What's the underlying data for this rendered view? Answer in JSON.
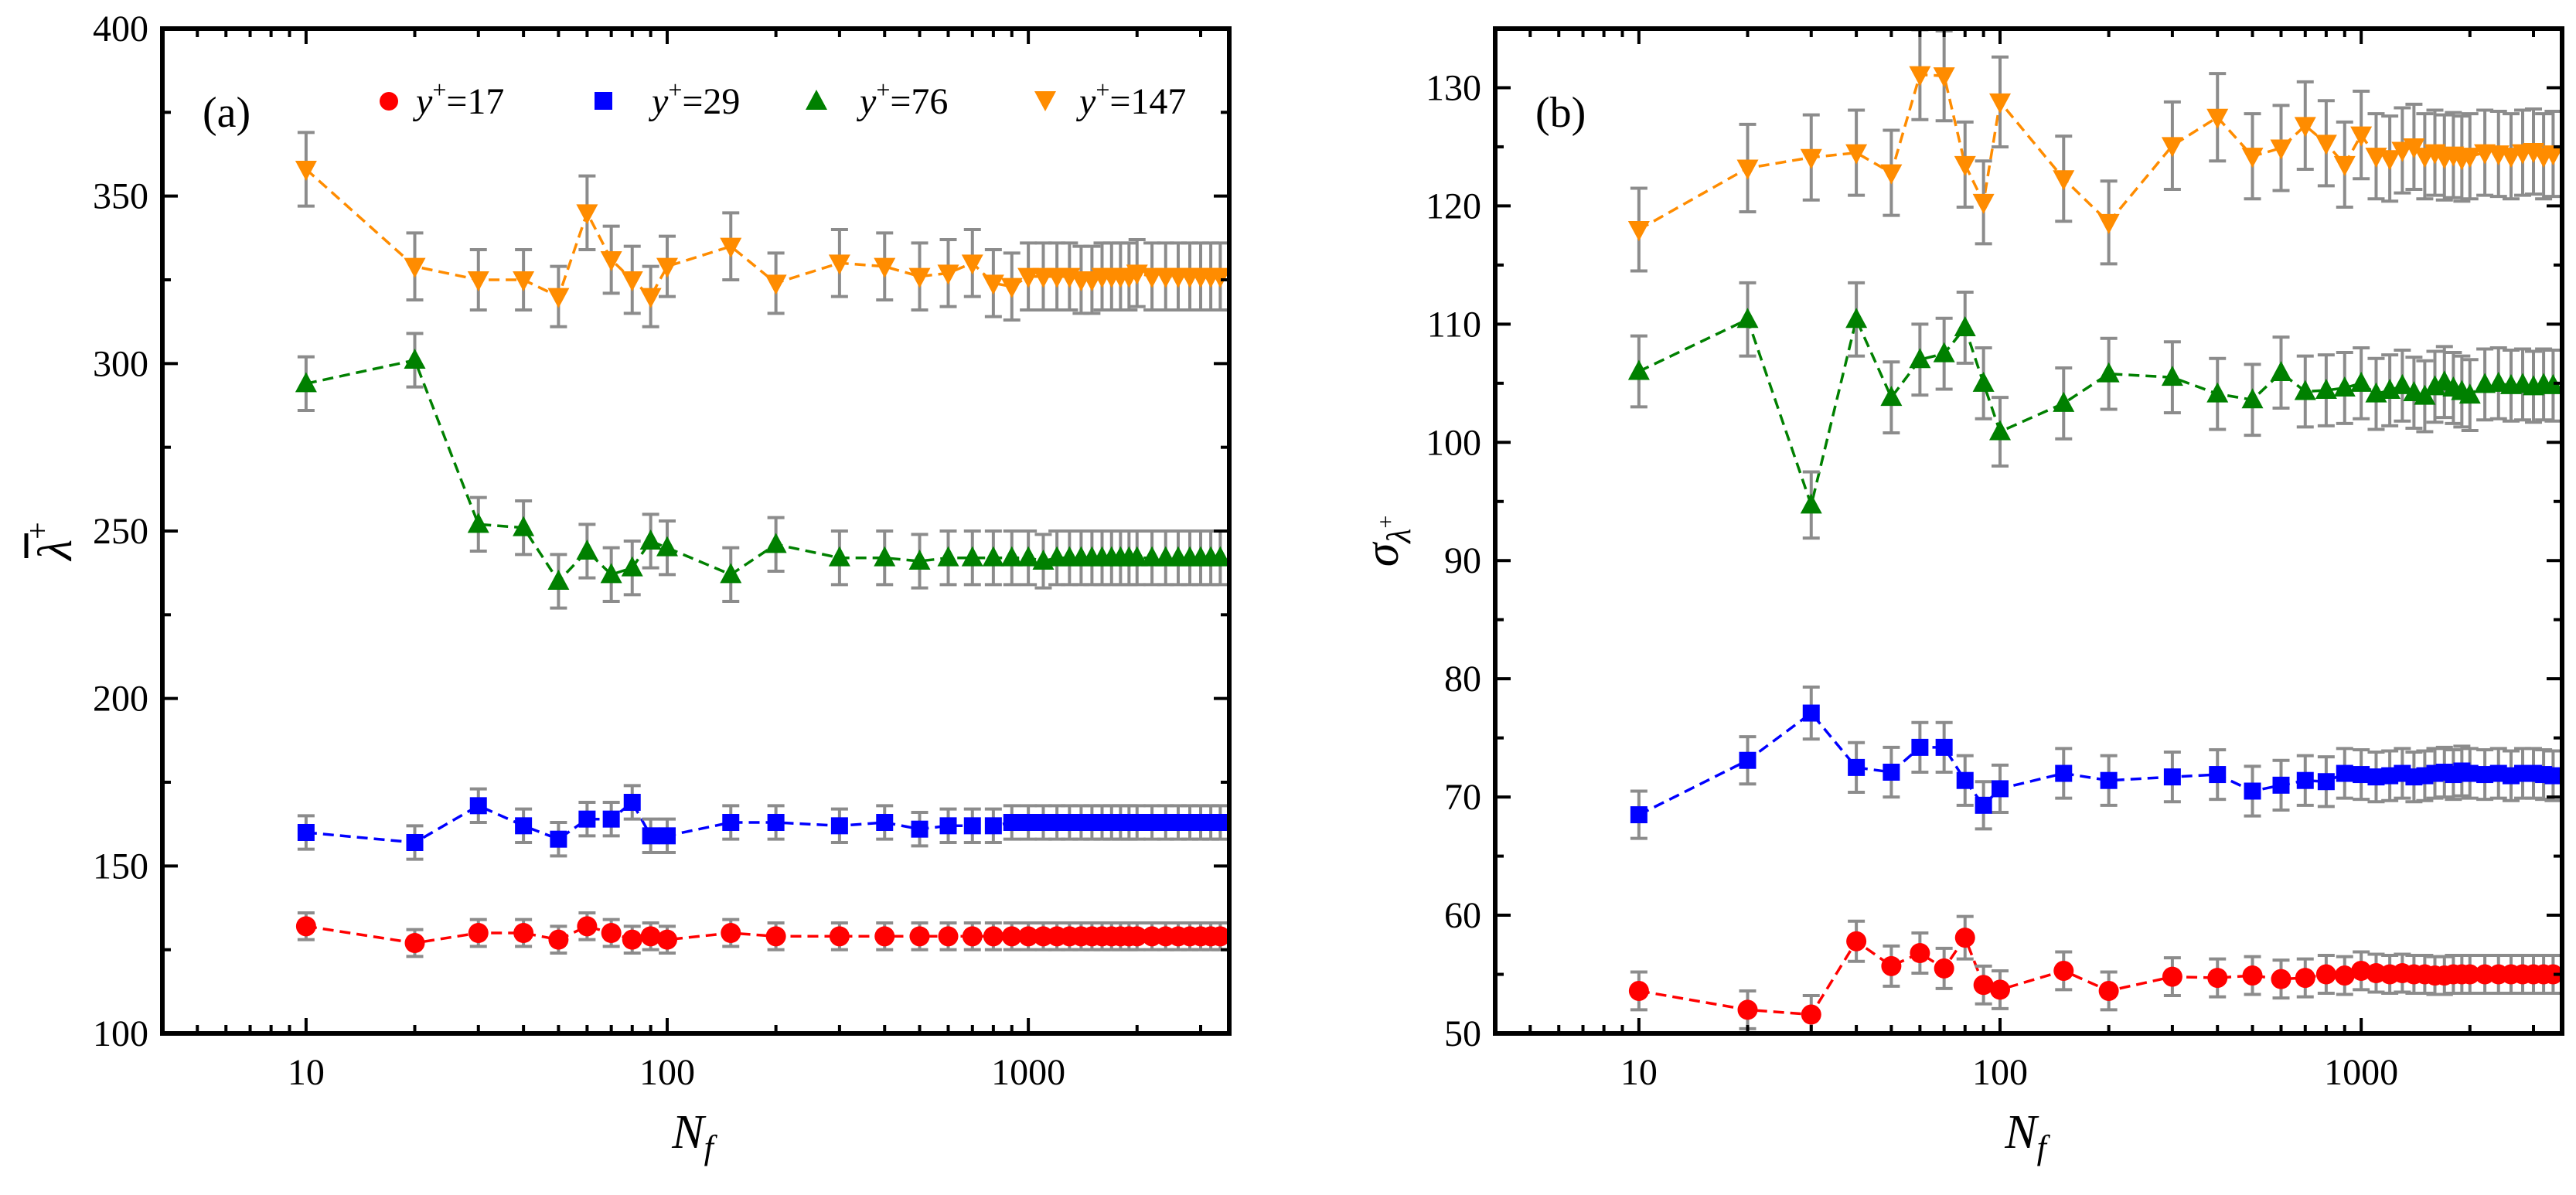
{
  "colors": {
    "red": "#ff0000",
    "blue": "#0000ff",
    "green": "#008000",
    "orange": "#ff8c00",
    "errorbar": "#8c8c8c"
  },
  "legend": {
    "entries": [
      {
        "marker": "circle",
        "color": "#ff0000",
        "prefix": "y",
        "sup": "+",
        "suffix": "=17"
      },
      {
        "marker": "square",
        "color": "#0000ff",
        "prefix": "y",
        "sup": "+",
        "suffix": "=29"
      },
      {
        "marker": "triangle-up",
        "color": "#008000",
        "prefix": "y",
        "sup": "+",
        "suffix": "=76"
      },
      {
        "marker": "triangle-down",
        "color": "#ff8c00",
        "prefix": "y",
        "sup": "+",
        "suffix": "=147"
      }
    ]
  },
  "chart_data": [
    {
      "type": "scatter",
      "panel_label": "(a)",
      "xlabel": "N_f",
      "ylabel": "λ̄+",
      "xscale": "log",
      "xlim": [
        4,
        3600
      ],
      "ylim": [
        100,
        400
      ],
      "xticks": [
        10,
        100,
        1000
      ],
      "xtick_labels": [
        "10",
        "100",
        "1000"
      ],
      "yticks": [
        100,
        150,
        200,
        250,
        300,
        350,
        400
      ],
      "ytick_labels": [
        "100",
        "150",
        "200",
        "250",
        "300",
        "350",
        "400"
      ],
      "legend_position": "top",
      "series": [
        {
          "name": "y+=17",
          "marker": "circle",
          "color": "#ff0000",
          "x": [
            10,
            20,
            30,
            40,
            50,
            60,
            70,
            80,
            90,
            100,
            150,
            200,
            300,
            400,
            500,
            600,
            700,
            800,
            900,
            1000,
            1100,
            1200,
            1300,
            1400,
            1500,
            1600,
            1700,
            1800,
            1900,
            2000,
            2200,
            2400,
            2600,
            2800,
            3000,
            3200,
            3400
          ],
          "y": [
            132,
            127,
            130,
            130,
            128,
            132,
            130,
            128,
            129,
            128,
            130,
            129,
            129,
            129,
            129,
            129,
            129,
            129,
            129,
            129,
            129,
            129,
            129,
            129,
            129,
            129,
            129,
            129,
            129,
            129,
            129,
            129,
            129,
            129,
            129,
            129,
            129
          ],
          "err": [
            4,
            4,
            4,
            4,
            4,
            4,
            4,
            4,
            4,
            4,
            4,
            4,
            4,
            4,
            4,
            4,
            4,
            4,
            4,
            4,
            4,
            4,
            4,
            4,
            4,
            4,
            4,
            4,
            4,
            4,
            4,
            4,
            4,
            4,
            4,
            4,
            4
          ]
        },
        {
          "name": "y+=29",
          "marker": "square",
          "color": "#0000ff",
          "x": [
            10,
            20,
            30,
            40,
            50,
            60,
            70,
            80,
            90,
            100,
            150,
            200,
            300,
            400,
            500,
            600,
            700,
            800,
            900,
            1000,
            1100,
            1200,
            1300,
            1400,
            1500,
            1600,
            1700,
            1800,
            1900,
            2000,
            2200,
            2400,
            2600,
            2800,
            3000,
            3200,
            3400
          ],
          "y": [
            160,
            157,
            168,
            162,
            158,
            164,
            164,
            169,
            159,
            159,
            163,
            163,
            162,
            163,
            161,
            162,
            162,
            162,
            163,
            163,
            163,
            163,
            163,
            163,
            163,
            163,
            163,
            163,
            163,
            163,
            163,
            163,
            163,
            163,
            163,
            163,
            163
          ],
          "err": [
            5,
            5,
            5,
            5,
            5,
            5,
            5,
            5,
            5,
            5,
            5,
            5,
            5,
            5,
            5,
            5,
            5,
            5,
            5,
            5,
            5,
            5,
            5,
            5,
            5,
            5,
            5,
            5,
            5,
            5,
            5,
            5,
            5,
            5,
            5,
            5,
            5
          ]
        },
        {
          "name": "y+=76",
          "marker": "triangle-up",
          "color": "#008000",
          "x": [
            10,
            20,
            30,
            40,
            50,
            60,
            70,
            80,
            90,
            100,
            150,
            200,
            300,
            400,
            500,
            600,
            700,
            800,
            900,
            1000,
            1100,
            1200,
            1300,
            1400,
            1500,
            1600,
            1700,
            1800,
            1900,
            2000,
            2200,
            2400,
            2600,
            2800,
            3000,
            3200,
            3400
          ],
          "y": [
            294,
            301,
            252,
            251,
            235,
            244,
            237,
            239,
            247,
            245,
            237,
            246,
            242,
            242,
            241,
            242,
            242,
            242,
            242,
            242,
            241,
            242,
            242,
            242,
            242,
            242,
            242,
            242,
            242,
            242,
            242,
            242,
            242,
            242,
            242,
            242,
            242
          ],
          "err": [
            8,
            8,
            8,
            8,
            8,
            8,
            8,
            8,
            8,
            8,
            8,
            8,
            8,
            8,
            8,
            8,
            8,
            8,
            8,
            8,
            8,
            8,
            8,
            8,
            8,
            8,
            8,
            8,
            8,
            8,
            8,
            8,
            8,
            8,
            8,
            8,
            8
          ]
        },
        {
          "name": "y+=147",
          "marker": "triangle-down",
          "color": "#ff8c00",
          "x": [
            10,
            20,
            30,
            40,
            50,
            60,
            70,
            80,
            90,
            100,
            150,
            200,
            300,
            400,
            500,
            600,
            700,
            800,
            900,
            1000,
            1100,
            1200,
            1300,
            1400,
            1500,
            1600,
            1700,
            1800,
            1900,
            2000,
            2200,
            2400,
            2600,
            2800,
            3000,
            3200,
            3400
          ],
          "y": [
            358,
            329,
            325,
            325,
            320,
            345,
            331,
            325,
            320,
            329,
            335,
            324,
            330,
            329,
            326,
            327,
            330,
            324,
            323,
            326,
            326,
            326,
            326,
            325,
            325,
            326,
            326,
            326,
            326,
            327,
            326,
            326,
            326,
            326,
            326,
            326,
            326
          ],
          "err": [
            11,
            10,
            9,
            9,
            9,
            11,
            10,
            10,
            9,
            9,
            10,
            9,
            10,
            10,
            10,
            10,
            10,
            10,
            10,
            10,
            10,
            10,
            10,
            10,
            10,
            10,
            10,
            10,
            10,
            10,
            10,
            10,
            10,
            10,
            10,
            10,
            10
          ]
        }
      ]
    },
    {
      "type": "scatter",
      "panel_label": "(b)",
      "xlabel": "N_f",
      "ylabel": "σλ+",
      "xscale": "log",
      "xlim": [
        4,
        3600
      ],
      "ylim": [
        50,
        135
      ],
      "xticks": [
        10,
        100,
        1000
      ],
      "xtick_labels": [
        "10",
        "100",
        "1000"
      ],
      "yticks": [
        50,
        60,
        70,
        80,
        90,
        100,
        110,
        120,
        130
      ],
      "ytick_labels": [
        "50",
        "60",
        "70",
        "80",
        "90",
        "100",
        "110",
        "120",
        "130"
      ],
      "series": [
        {
          "name": "y+=17",
          "marker": "circle",
          "color": "#ff0000",
          "x": [
            10,
            20,
            30,
            40,
            50,
            60,
            70,
            80,
            90,
            100,
            150,
            200,
            300,
            400,
            500,
            600,
            700,
            800,
            900,
            1000,
            1100,
            1200,
            1300,
            1400,
            1500,
            1600,
            1700,
            1800,
            1900,
            2000,
            2200,
            2400,
            2600,
            2800,
            3000,
            3200,
            3400
          ],
          "y": [
            53.6,
            52.0,
            51.6,
            57.8,
            55.7,
            56.8,
            55.5,
            58.1,
            54.1,
            53.7,
            55.3,
            53.6,
            54.8,
            54.7,
            54.9,
            54.6,
            54.7,
            55.0,
            54.9,
            55.3,
            55.1,
            55.0,
            55.1,
            55.0,
            55.0,
            54.9,
            54.9,
            55.0,
            55.0,
            55.0,
            55.0,
            55.0,
            55.0,
            55.0,
            55.0,
            55.0,
            55.0
          ],
          "err": [
            1.6,
            1.6,
            1.6,
            1.7,
            1.7,
            1.7,
            1.7,
            1.8,
            1.6,
            1.6,
            1.6,
            1.6,
            1.6,
            1.6,
            1.6,
            1.6,
            1.6,
            1.6,
            1.6,
            1.6,
            1.6,
            1.6,
            1.6,
            1.6,
            1.6,
            1.6,
            1.6,
            1.6,
            1.6,
            1.6,
            1.6,
            1.6,
            1.6,
            1.6,
            1.6,
            1.6,
            1.6
          ]
        },
        {
          "name": "y+=29",
          "marker": "square",
          "color": "#0000ff",
          "x": [
            10,
            20,
            30,
            40,
            50,
            60,
            70,
            80,
            90,
            100,
            150,
            200,
            300,
            400,
            500,
            600,
            700,
            800,
            900,
            1000,
            1100,
            1200,
            1300,
            1400,
            1500,
            1600,
            1700,
            1800,
            1900,
            2000,
            2200,
            2400,
            2600,
            2800,
            3000,
            3200,
            3400
          ],
          "y": [
            68.5,
            73.1,
            77.1,
            72.5,
            72.1,
            74.2,
            74.2,
            71.4,
            69.3,
            70.7,
            72.0,
            71.4,
            71.7,
            71.9,
            70.5,
            71.0,
            71.4,
            71.3,
            72.0,
            71.9,
            71.7,
            71.8,
            72.0,
            71.7,
            71.8,
            72.0,
            72.1,
            71.9,
            72.2,
            72.0,
            71.9,
            72.0,
            71.8,
            72.0,
            72.0,
            71.9,
            71.8
          ],
          "err": [
            2.0,
            2.0,
            2.2,
            2.1,
            2.1,
            2.1,
            2.1,
            2.1,
            2.0,
            2.0,
            2.1,
            2.1,
            2.1,
            2.1,
            2.1,
            2.1,
            2.1,
            2.1,
            2.1,
            2.1,
            2.1,
            2.1,
            2.1,
            2.1,
            2.1,
            2.1,
            2.1,
            2.1,
            2.1,
            2.1,
            2.1,
            2.1,
            2.1,
            2.1,
            2.1,
            2.1,
            2.1
          ]
        },
        {
          "name": "y+=76",
          "marker": "triangle-up",
          "color": "#008000",
          "x": [
            10,
            20,
            30,
            40,
            50,
            60,
            70,
            80,
            90,
            100,
            150,
            200,
            300,
            400,
            500,
            600,
            700,
            800,
            900,
            1000,
            1100,
            1200,
            1300,
            1400,
            1500,
            1600,
            1700,
            1800,
            1900,
            2000,
            2200,
            2400,
            2600,
            2800,
            3000,
            3200,
            3400
          ],
          "y": [
            106.0,
            110.4,
            94.7,
            110.4,
            103.8,
            107.0,
            107.5,
            109.7,
            105.0,
            100.9,
            103.3,
            105.8,
            105.5,
            104.1,
            103.6,
            105.9,
            104.3,
            104.4,
            104.6,
            105.0,
            104.1,
            104.4,
            104.8,
            104.2,
            103.9,
            104.7,
            105.1,
            104.6,
            104.3,
            104.0,
            104.9,
            105.0,
            104.8,
            104.9,
            104.7,
            104.9,
            104.8
          ],
          "err": [
            3.0,
            3.1,
            2.8,
            3.1,
            3.0,
            3.0,
            3.0,
            3.0,
            3.0,
            2.9,
            3.0,
            3.0,
            3.0,
            3.0,
            3.0,
            3.0,
            3.0,
            3.0,
            3.0,
            3.0,
            3.0,
            3.0,
            3.0,
            3.0,
            3.0,
            3.0,
            3.0,
            3.0,
            3.0,
            3.0,
            3.0,
            3.0,
            3.0,
            3.0,
            3.0,
            3.0,
            3.0
          ]
        },
        {
          "name": "y+=147",
          "marker": "triangle-down",
          "color": "#ff8c00",
          "x": [
            10,
            20,
            30,
            40,
            50,
            60,
            70,
            80,
            90,
            100,
            150,
            200,
            300,
            400,
            500,
            600,
            700,
            800,
            900,
            1000,
            1100,
            1200,
            1300,
            1400,
            1500,
            1600,
            1700,
            1800,
            1900,
            2000,
            2200,
            2400,
            2600,
            2800,
            3000,
            3200,
            3400
          ],
          "y": [
            118.0,
            123.2,
            124.1,
            124.5,
            122.8,
            131.1,
            131.0,
            123.5,
            120.3,
            128.8,
            122.3,
            118.6,
            125.1,
            127.5,
            124.2,
            124.9,
            126.8,
            125.3,
            123.5,
            126.0,
            124.2,
            124.0,
            124.7,
            125.0,
            124.2,
            124.5,
            124.1,
            124.3,
            124.0,
            124.2,
            124.5,
            124.4,
            124.2,
            124.5,
            124.6,
            124.2,
            124.4
          ],
          "err": [
            3.5,
            3.7,
            3.6,
            3.6,
            3.6,
            3.8,
            3.8,
            3.6,
            3.5,
            3.8,
            3.6,
            3.5,
            3.7,
            3.7,
            3.6,
            3.6,
            3.7,
            3.6,
            3.6,
            3.7,
            3.6,
            3.6,
            3.6,
            3.6,
            3.6,
            3.6,
            3.6,
            3.6,
            3.6,
            3.6,
            3.6,
            3.6,
            3.6,
            3.6,
            3.6,
            3.6,
            3.6
          ]
        }
      ]
    }
  ]
}
